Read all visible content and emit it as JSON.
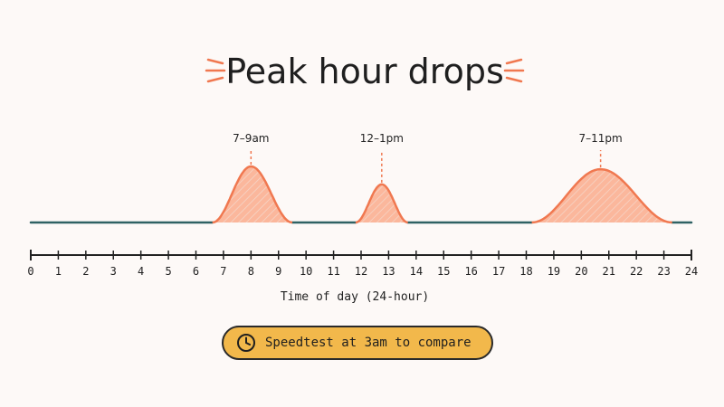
{
  "title": "Peak hour drops",
  "colors": {
    "accent": "#f07850",
    "fill": "#fbb79c",
    "baseline": "#2f6264",
    "ink": "#222222",
    "button": "#f2b84b",
    "background": "#fdf9f7"
  },
  "chart_data": {
    "type": "area",
    "title": "Peak hour drops",
    "xlabel": "Time of day (24-hour)",
    "ylabel": "",
    "xlim": [
      0,
      24
    ],
    "x_ticks": [
      "0",
      "1",
      "2",
      "3",
      "4",
      "5",
      "6",
      "7",
      "8",
      "9",
      "10",
      "11",
      "12",
      "13",
      "14",
      "15",
      "16",
      "17",
      "18",
      "19",
      "20",
      "21",
      "22",
      "23",
      "24"
    ],
    "grid": false,
    "peaks": [
      {
        "label": "7–9am",
        "start": 6.6,
        "end": 9.5,
        "peak_x": 8.0,
        "intensity": 1.0
      },
      {
        "label": "12–1pm",
        "start": 11.8,
        "end": 13.7,
        "peak_x": 12.75,
        "intensity": 0.68
      },
      {
        "label": "7–11pm",
        "start": 18.2,
        "end": 23.3,
        "peak_x": 20.7,
        "intensity": 0.95
      }
    ]
  },
  "cta": {
    "label": "Speedtest at 3am to compare",
    "icon": "clock-icon"
  }
}
